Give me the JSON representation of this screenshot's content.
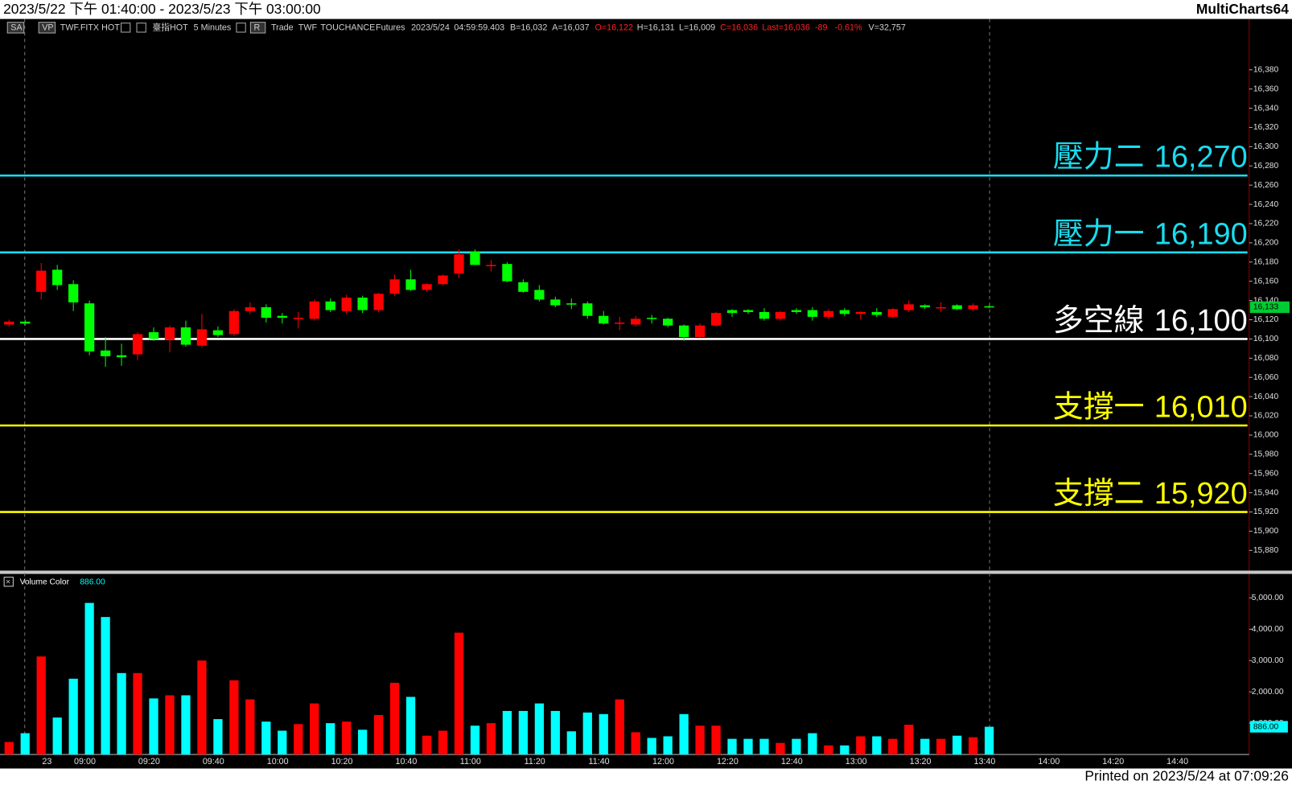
{
  "header": {
    "title": "2023/5/22 下午 01:40:00 - 2023/5/23 下午 03:00:00",
    "app": "MultiCharts64"
  },
  "toolbar": [
    "SA",
    "VP",
    "TWF.FITX HOT",
    "臺指HOT",
    "5 Minutes",
    "R",
    "Trade",
    "TWF",
    "TOUCHANCE",
    "Futures",
    "2023/5/24",
    "04:59:59.403",
    "B=16,032",
    "A=16,037",
    "O=16,122",
    "H=16,131",
    "L=16,009",
    "C=16,036",
    "Last=16,036",
    "-89",
    "-0.61%",
    "V=32,757"
  ],
  "footer": "Printed on 2023/5/24 at 07:09:26",
  "chart_data": [
    {
      "type": "candlestick",
      "up_color": "#ff0000",
      "down_color": "#00ff00",
      "open": [
        16115,
        16118,
        16149,
        16172,
        16157,
        16137,
        16088,
        16083,
        16084,
        16107,
        16099,
        16112,
        16093,
        16109,
        16105,
        16129,
        16133,
        16124,
        16121,
        16121,
        16139,
        16129,
        16143,
        16130,
        16147,
        16162,
        16151,
        16157,
        16168,
        16191,
        16176,
        16178,
        16159,
        16151,
        16141,
        16137,
        16137,
        16124,
        16116,
        16115,
        16122,
        16121,
        16114,
        16102,
        16114,
        16130,
        16130,
        16128,
        16121,
        16130,
        16130,
        16123,
        16130,
        16126,
        16128,
        16123,
        16130,
        16135,
        16132,
        16135,
        16131,
        16134
      ],
      "high": [
        16120,
        16120,
        16179,
        16177,
        16161,
        16140,
        16102,
        16095,
        16107,
        16112,
        16114,
        16119,
        16126,
        16113,
        16131,
        16138,
        16136,
        16127,
        16128,
        16141,
        16142,
        16146,
        16145,
        16148,
        16167,
        16172,
        16158,
        16167,
        16193,
        16193,
        16182,
        16180,
        16162,
        16156,
        16144,
        16142,
        16139,
        16129,
        16123,
        16124,
        16125,
        16122,
        16115,
        16116,
        16128,
        16131,
        16131,
        16132,
        16129,
        16132,
        16133,
        16131,
        16132,
        16129,
        16132,
        16132,
        16140,
        16136,
        16138,
        16136,
        16137,
        16135
      ],
      "low": [
        16113,
        16114,
        16141,
        16151,
        16129,
        16083,
        16071,
        16072,
        16078,
        16098,
        16086,
        16092,
        16091,
        16102,
        16103,
        16126,
        16117,
        16116,
        16111,
        16119,
        16128,
        16126,
        16127,
        16128,
        16145,
        16150,
        16149,
        16156,
        16163,
        16177,
        16170,
        16159,
        16148,
        16139,
        16133,
        16131,
        16121,
        16115,
        16109,
        16113,
        16116,
        16112,
        16098,
        16101,
        16113,
        16123,
        16126,
        16119,
        16119,
        16126,
        16119,
        16121,
        16124,
        16120,
        16123,
        16122,
        16128,
        16131,
        16128,
        16130,
        16129,
        16132
      ],
      "close": [
        16118,
        16116,
        16171,
        16156,
        16138,
        16087,
        16082,
        16081,
        16105,
        16100,
        16112,
        16094,
        16110,
        16104,
        16129,
        16133,
        16122,
        16122,
        16122,
        16139,
        16130,
        16143,
        16130,
        16147,
        16162,
        16151,
        16157,
        16166,
        16188,
        16177,
        16177,
        16160,
        16149,
        16141,
        16135,
        16136,
        16124,
        16116,
        16117,
        16121,
        16121,
        16114,
        16102,
        16114,
        16127,
        16127,
        16128,
        16121,
        16128,
        16128,
        16123,
        16129,
        16126,
        16128,
        16125,
        16131,
        16136,
        16133,
        16133,
        16131,
        16135,
        16133
      ],
      "ylim": [
        15859,
        16432
      ],
      "yticks": [
        {
          "value": 15880,
          "label": "15,880"
        },
        {
          "value": 15900,
          "label": "15,900"
        },
        {
          "value": 15920,
          "label": "15,920"
        },
        {
          "value": 15940,
          "label": "15,940"
        },
        {
          "value": 15960,
          "label": "15,960"
        },
        {
          "value": 15980,
          "label": "15,980"
        },
        {
          "value": 16000,
          "label": "16,000"
        },
        {
          "value": 16020,
          "label": "16,020"
        },
        {
          "value": 16040,
          "label": "16,040"
        },
        {
          "value": 16060,
          "label": "16,060"
        },
        {
          "value": 16080,
          "label": "16,080"
        },
        {
          "value": 16100,
          "label": "16,100"
        },
        {
          "value": 16120,
          "label": "16,120"
        },
        {
          "value": 16140,
          "label": "16,140"
        },
        {
          "value": 16160,
          "label": "16,160"
        },
        {
          "value": 16180,
          "label": "16,180"
        },
        {
          "value": 16200,
          "label": "16,200"
        },
        {
          "value": 16220,
          "label": "16,220"
        },
        {
          "value": 16240,
          "label": "16,240"
        },
        {
          "value": 16260,
          "label": "16,260"
        },
        {
          "value": 16280,
          "label": "16,280"
        },
        {
          "value": 16300,
          "label": "16,300"
        },
        {
          "value": 16320,
          "label": "16,320"
        },
        {
          "value": 16340,
          "label": "16,340"
        },
        {
          "value": 16360,
          "label": "16,360"
        },
        {
          "value": 16380,
          "label": "16,380"
        }
      ],
      "levels": [
        {
          "name": "壓力二",
          "value": 16270,
          "label": "16,270",
          "color": "#1adcf0"
        },
        {
          "name": "壓力一",
          "value": 16190,
          "label": "16,190",
          "color": "#1adcf0"
        },
        {
          "name": "多空線",
          "value": 16100,
          "label": "16,100",
          "color": "#ffffff"
        },
        {
          "name": "支撐一",
          "value": 16010,
          "label": "16,010",
          "color": "#ffff00"
        },
        {
          "name": "支撐二",
          "value": 15920,
          "label": "15,920",
          "color": "#ffff00"
        }
      ],
      "last_price": {
        "value": 16133,
        "label": "16,133",
        "color": "#00cc33"
      }
    },
    {
      "type": "bar",
      "title": "Volume Color",
      "up_color": "#ff0000",
      "down_color": "#00ffff",
      "values": [
        400,
        680,
        3130,
        1180,
        2420,
        4840,
        4390,
        2600,
        2600,
        1790,
        1890,
        1890,
        3000,
        1130,
        2370,
        1760,
        1050,
        760,
        970,
        1630,
        1000,
        1050,
        790,
        1260,
        2290,
        1840,
        600,
        760,
        3890,
        920,
        1000,
        1390,
        1390,
        1630,
        1390,
        740,
        1340,
        1290,
        1760,
        710,
        530,
        580,
        1290,
        920,
        920,
        500,
        500,
        500,
        370,
        500,
        680,
        290,
        290,
        580,
        580,
        500,
        950,
        500,
        500,
        600,
        550,
        886
      ],
      "last_label": "886.00",
      "ylim": [
        0,
        5740
      ],
      "yticks": [
        {
          "value": 1000,
          "label": "1,000.00"
        },
        {
          "value": 2000,
          "label": "2,000.00"
        },
        {
          "value": 3000,
          "label": "3,000.00"
        },
        {
          "value": 4000,
          "label": "4,000.00"
        },
        {
          "value": 5000,
          "label": "5,000.00"
        }
      ],
      "xtick_labels": [
        "23",
        "09:00",
        "09:20",
        "09:40",
        "10:00",
        "10:20",
        "10:40",
        "11:00",
        "11:20",
        "11:40",
        "12:00",
        "12:20",
        "12:40",
        "13:00",
        "13:20",
        "13:40",
        "14:00",
        "14:20",
        "14:40"
      ]
    }
  ]
}
